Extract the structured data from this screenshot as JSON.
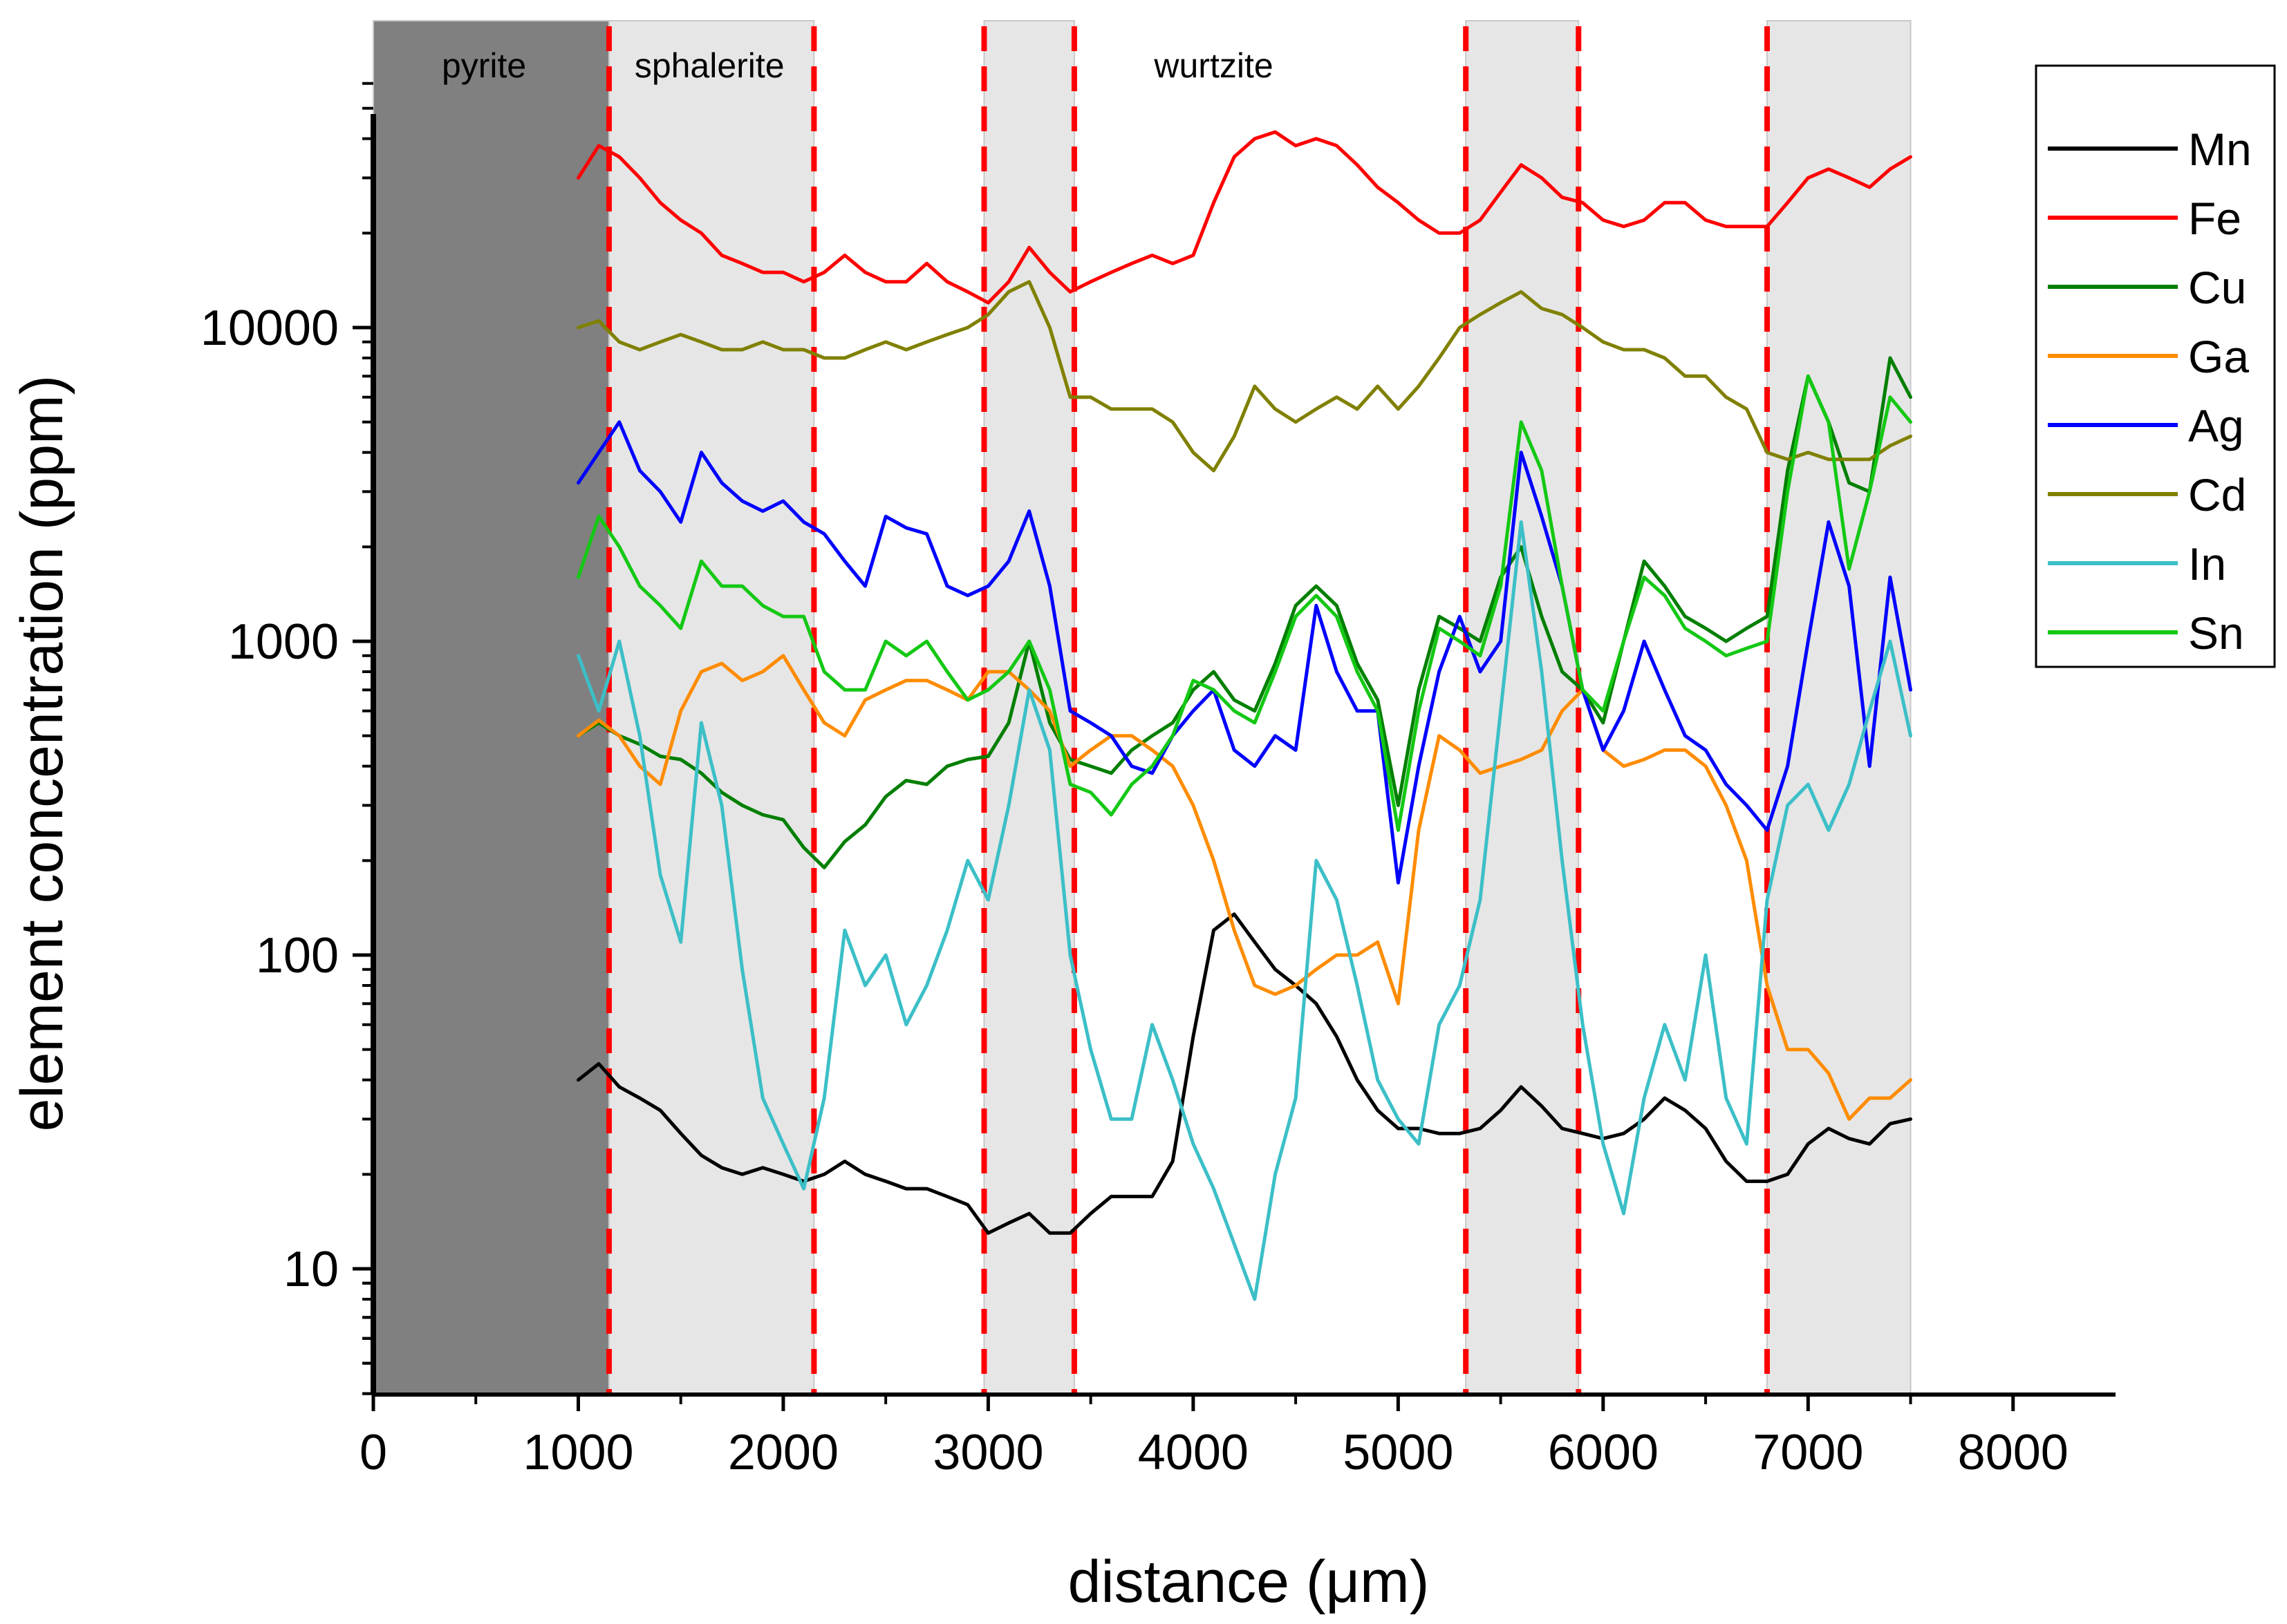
{
  "chart_data": {
    "type": "line",
    "xlabel": "distance (μm)",
    "ylabel": "element concentration (ppm)",
    "x_scale": "linear",
    "y_scale": "log",
    "xlim": [
      0,
      8500
    ],
    "ylim": [
      4,
      60000
    ],
    "x_ticks": [
      0,
      1000,
      2000,
      3000,
      4000,
      5000,
      6000,
      7000,
      8000
    ],
    "x_tick_labels": [
      "0",
      "1000",
      "2000",
      "3000",
      "4000",
      "5000",
      "6000",
      "7000",
      "8000"
    ],
    "y_ticks": [
      10,
      100,
      1000,
      10000
    ],
    "y_tick_labels": [
      "10",
      "100",
      "1000",
      "10000"
    ],
    "zones": [
      {
        "start": 0,
        "end": 1150,
        "fill": "#808080"
      },
      {
        "start": 1150,
        "end": 2150,
        "fill": "#e6e6e6"
      },
      {
        "start": 2980,
        "end": 3420,
        "fill": "#e6e6e6"
      },
      {
        "start": 5330,
        "end": 5880,
        "fill": "#e6e6e6"
      },
      {
        "start": 6800,
        "end": 7500,
        "fill": "#e6e6e6"
      }
    ],
    "zone_labels": [
      {
        "text": "pyrite",
        "x": 540
      },
      {
        "text": "sphalerite",
        "x": 1640
      },
      {
        "text": "wurtzite",
        "x": 4100
      }
    ],
    "boundaries": [
      1150,
      2150,
      2980,
      3420,
      5330,
      5880,
      6800
    ],
    "boundary_color": "#ff0000",
    "series": [
      {
        "name": "Mn",
        "color": "#000000",
        "x": [
          1000,
          1100,
          1200,
          1300,
          1400,
          1500,
          1600,
          1700,
          1800,
          1900,
          2000,
          2100,
          2200,
          2300,
          2400,
          2500,
          2600,
          2700,
          2800,
          2900,
          3000,
          3100,
          3200,
          3300,
          3400,
          3500,
          3600,
          3700,
          3800,
          3900,
          4000,
          4100,
          4200,
          4300,
          4400,
          4500,
          4600,
          4700,
          4800,
          4900,
          5000,
          5100,
          5200,
          5300,
          5400,
          5500,
          5600,
          5700,
          5800,
          5900,
          6000,
          6100,
          6200,
          6300,
          6400,
          6500,
          6600,
          6700,
          6800,
          6900,
          7000,
          7100,
          7200,
          7300,
          7400,
          7500
        ],
        "y": [
          40,
          45,
          38,
          35,
          32,
          27,
          23,
          21,
          20,
          21,
          20,
          19,
          20,
          22,
          20,
          19,
          18,
          18,
          17,
          16,
          13,
          14,
          15,
          13,
          13,
          15,
          17,
          17,
          17,
          22,
          55,
          120,
          135,
          110,
          90,
          80,
          70,
          55,
          40,
          32,
          28,
          28,
          27,
          27,
          28,
          32,
          38,
          33,
          28,
          27,
          26,
          27,
          30,
          35,
          32,
          28,
          22,
          19,
          19,
          20,
          25,
          28,
          26,
          25,
          29,
          30
        ]
      },
      {
        "name": "Fe",
        "color": "#ff0000",
        "x": [
          1000,
          1100,
          1200,
          1300,
          1400,
          1500,
          1600,
          1700,
          1800,
          1900,
          2000,
          2100,
          2200,
          2300,
          2400,
          2500,
          2600,
          2700,
          2800,
          2900,
          3000,
          3100,
          3200,
          3300,
          3400,
          3500,
          3600,
          3700,
          3800,
          3900,
          4000,
          4100,
          4200,
          4300,
          4400,
          4500,
          4600,
          4700,
          4800,
          4900,
          5000,
          5100,
          5200,
          5300,
          5400,
          5500,
          5600,
          5700,
          5800,
          5900,
          6000,
          6100,
          6200,
          6300,
          6400,
          6500,
          6600,
          6700,
          6800,
          6900,
          7000,
          7100,
          7200,
          7300,
          7400,
          7500
        ],
        "y": [
          30000,
          38000,
          35000,
          30000,
          25000,
          22000,
          20000,
          17000,
          16000,
          15000,
          15000,
          14000,
          15000,
          17000,
          15000,
          14000,
          14000,
          16000,
          14000,
          13000,
          12000,
          14000,
          18000,
          15000,
          13000,
          14000,
          15000,
          16000,
          17000,
          16000,
          17000,
          25000,
          35000,
          40000,
          42000,
          38000,
          40000,
          38000,
          33000,
          28000,
          25000,
          22000,
          20000,
          20000,
          22000,
          27000,
          33000,
          30000,
          26000,
          25000,
          22000,
          21000,
          22000,
          25000,
          25000,
          22000,
          21000,
          21000,
          21000,
          25000,
          30000,
          32000,
          30000,
          28000,
          32000,
          35000
        ]
      },
      {
        "name": "Cu",
        "color": "#007f00",
        "x": [
          1000,
          1100,
          1200,
          1300,
          1400,
          1500,
          1600,
          1700,
          1800,
          1900,
          2000,
          2100,
          2200,
          2300,
          2400,
          2500,
          2600,
          2700,
          2800,
          2900,
          3000,
          3100,
          3200,
          3300,
          3400,
          3500,
          3600,
          3700,
          3800,
          3900,
          4000,
          4100,
          4200,
          4300,
          4400,
          4500,
          4600,
          4700,
          4800,
          4900,
          5000,
          5100,
          5200,
          5300,
          5400,
          5500,
          5600,
          5700,
          5800,
          5900,
          6000,
          6100,
          6200,
          6300,
          6400,
          6500,
          6600,
          6700,
          6800,
          6900,
          7000,
          7100,
          7200,
          7300,
          7400,
          7500
        ],
        "y": [
          500,
          550,
          500,
          470,
          430,
          420,
          380,
          330,
          300,
          280,
          270,
          220,
          190,
          230,
          260,
          320,
          360,
          350,
          400,
          420,
          430,
          550,
          1000,
          550,
          420,
          400,
          380,
          450,
          500,
          550,
          700,
          800,
          650,
          600,
          850,
          1300,
          1500,
          1300,
          850,
          650,
          300,
          700,
          1200,
          1100,
          1000,
          1600,
          2000,
          1200,
          800,
          700,
          550,
          1000,
          1800,
          1500,
          1200,
          1100,
          1000,
          1100,
          1200,
          3500,
          7000,
          5000,
          3200,
          3000,
          8000,
          6000
        ]
      },
      {
        "name": "Ga",
        "color": "#ff8c00",
        "x": [
          1000,
          1100,
          1200,
          1300,
          1400,
          1500,
          1600,
          1700,
          1800,
          1900,
          2000,
          2100,
          2200,
          2300,
          2400,
          2500,
          2600,
          2700,
          2800,
          2900,
          3000,
          3100,
          3200,
          3300,
          3400,
          3500,
          3600,
          3700,
          3800,
          3900,
          4000,
          4100,
          4200,
          4300,
          4400,
          4500,
          4600,
          4700,
          4800,
          4900,
          5000,
          5100,
          5200,
          5300,
          5400,
          5500,
          5600,
          5700,
          5800,
          5900,
          6000,
          6100,
          6200,
          6300,
          6400,
          6500,
          6600,
          6700,
          6800,
          6900,
          7000,
          7100,
          7200,
          7300,
          7400,
          7500
        ],
        "y": [
          500,
          560,
          500,
          400,
          350,
          600,
          800,
          850,
          750,
          800,
          900,
          700,
          550,
          500,
          650,
          700,
          750,
          750,
          700,
          650,
          800,
          800,
          700,
          600,
          400,
          450,
          500,
          500,
          450,
          400,
          300,
          200,
          120,
          80,
          75,
          80,
          90,
          100,
          100,
          110,
          70,
          250,
          500,
          450,
          380,
          400,
          420,
          450,
          600,
          700,
          450,
          400,
          420,
          450,
          450,
          400,
          300,
          200,
          80,
          50,
          50,
          42,
          30,
          35,
          35,
          40
        ]
      },
      {
        "name": "Ag",
        "color": "#0000ff",
        "x": [
          1000,
          1100,
          1200,
          1300,
          1400,
          1500,
          1600,
          1700,
          1800,
          1900,
          2000,
          2100,
          2200,
          2300,
          2400,
          2500,
          2600,
          2700,
          2800,
          2900,
          3000,
          3100,
          3200,
          3300,
          3400,
          3500,
          3600,
          3700,
          3800,
          3900,
          4000,
          4100,
          4200,
          4300,
          4400,
          4500,
          4600,
          4700,
          4800,
          4900,
          5000,
          5100,
          5200,
          5300,
          5400,
          5500,
          5600,
          5700,
          5800,
          5900,
          6000,
          6100,
          6200,
          6300,
          6400,
          6500,
          6600,
          6700,
          6800,
          6900,
          7000,
          7100,
          7200,
          7300,
          7400,
          7500
        ],
        "y": [
          3200,
          4000,
          5000,
          3500,
          3000,
          2400,
          4000,
          3200,
          2800,
          2600,
          2800,
          2400,
          2200,
          1800,
          1500,
          2500,
          2300,
          2200,
          1500,
          1400,
          1500,
          1800,
          2600,
          1500,
          600,
          550,
          500,
          400,
          380,
          500,
          600,
          700,
          450,
          400,
          500,
          450,
          1300,
          800,
          600,
          600,
          170,
          400,
          800,
          1200,
          800,
          1000,
          4000,
          2500,
          1500,
          700,
          450,
          600,
          1000,
          700,
          500,
          450,
          350,
          300,
          250,
          400,
          1000,
          2400,
          1500,
          400,
          1600,
          700
        ]
      },
      {
        "name": "Cd",
        "color": "#808000",
        "x": [
          1000,
          1100,
          1200,
          1300,
          1400,
          1500,
          1600,
          1700,
          1800,
          1900,
          2000,
          2100,
          2200,
          2300,
          2400,
          2500,
          2600,
          2700,
          2800,
          2900,
          3000,
          3100,
          3200,
          3300,
          3400,
          3500,
          3600,
          3700,
          3800,
          3900,
          4000,
          4100,
          4200,
          4300,
          4400,
          4500,
          4600,
          4700,
          4800,
          4900,
          5000,
          5100,
          5200,
          5300,
          5400,
          5500,
          5600,
          5700,
          5800,
          5900,
          6000,
          6100,
          6200,
          6300,
          6400,
          6500,
          6600,
          6700,
          6800,
          6900,
          7000,
          7100,
          7200,
          7300,
          7400,
          7500
        ],
        "y": [
          10000,
          10500,
          9000,
          8500,
          9000,
          9500,
          9000,
          8500,
          8500,
          9000,
          8500,
          8500,
          8000,
          8000,
          8500,
          9000,
          8500,
          9000,
          9500,
          10000,
          11000,
          13000,
          14000,
          10000,
          6000,
          6000,
          5500,
          5500,
          5500,
          5000,
          4000,
          3500,
          4500,
          6500,
          5500,
          5000,
          5500,
          6000,
          5500,
          6500,
          5500,
          6500,
          8000,
          10000,
          11000,
          12000,
          13000,
          11500,
          11000,
          10000,
          9000,
          8500,
          8500,
          8000,
          7000,
          7000,
          6000,
          5500,
          4000,
          3800,
          4000,
          3800,
          3800,
          3800,
          4200,
          4500
        ]
      },
      {
        "name": "In",
        "color": "#3cbfc7",
        "x": [
          1000,
          1100,
          1200,
          1300,
          1400,
          1500,
          1600,
          1700,
          1800,
          1900,
          2000,
          2100,
          2200,
          2300,
          2400,
          2500,
          2600,
          2700,
          2800,
          2900,
          3000,
          3100,
          3200,
          3300,
          3400,
          3500,
          3600,
          3700,
          3800,
          3900,
          4000,
          4100,
          4200,
          4300,
          4400,
          4500,
          4600,
          4700,
          4800,
          4900,
          5000,
          5100,
          5200,
          5300,
          5400,
          5500,
          5600,
          5700,
          5800,
          5900,
          6000,
          6100,
          6200,
          6300,
          6400,
          6500,
          6600,
          6700,
          6800,
          6900,
          7000,
          7100,
          7200,
          7300,
          7400,
          7500
        ],
        "y": [
          900,
          600,
          1000,
          500,
          180,
          110,
          550,
          300,
          90,
          35,
          25,
          18,
          35,
          120,
          80,
          100,
          60,
          80,
          120,
          200,
          150,
          300,
          700,
          450,
          100,
          50,
          30,
          30,
          60,
          40,
          25,
          18,
          12,
          8,
          20,
          35,
          200,
          150,
          80,
          40,
          30,
          25,
          60,
          80,
          150,
          600,
          2400,
          800,
          200,
          60,
          25,
          15,
          35,
          60,
          40,
          100,
          35,
          25,
          150,
          300,
          350,
          250,
          350,
          600,
          1000,
          500
        ]
      },
      {
        "name": "Sn",
        "color": "#14c814",
        "x": [
          1000,
          1100,
          1200,
          1300,
          1400,
          1500,
          1600,
          1700,
          1800,
          1900,
          2000,
          2100,
          2200,
          2300,
          2400,
          2500,
          2600,
          2700,
          2800,
          2900,
          3000,
          3100,
          3200,
          3300,
          3400,
          3500,
          3600,
          3700,
          3800,
          3900,
          4000,
          4100,
          4200,
          4300,
          4400,
          4500,
          4600,
          4700,
          4800,
          4900,
          5000,
          5100,
          5200,
          5300,
          5400,
          5500,
          5600,
          5700,
          5800,
          5900,
          6000,
          6100,
          6200,
          6300,
          6400,
          6500,
          6600,
          6700,
          6800,
          6900,
          7000,
          7100,
          7200,
          7300,
          7400,
          7500
        ],
        "y": [
          1600,
          2500,
          2000,
          1500,
          1300,
          1100,
          1800,
          1500,
          1500,
          1300,
          1200,
          1200,
          800,
          700,
          700,
          1000,
          900,
          1000,
          800,
          650,
          700,
          800,
          1000,
          700,
          350,
          330,
          280,
          350,
          400,
          500,
          750,
          700,
          600,
          550,
          800,
          1200,
          1400,
          1200,
          800,
          600,
          250,
          600,
          1100,
          1000,
          900,
          1500,
          5000,
          3500,
          1500,
          700,
          600,
          1000,
          1600,
          1400,
          1100,
          1000,
          900,
          950,
          1000,
          3000,
          7000,
          5000,
          1700,
          3000,
          6000,
          5000
        ]
      }
    ]
  }
}
